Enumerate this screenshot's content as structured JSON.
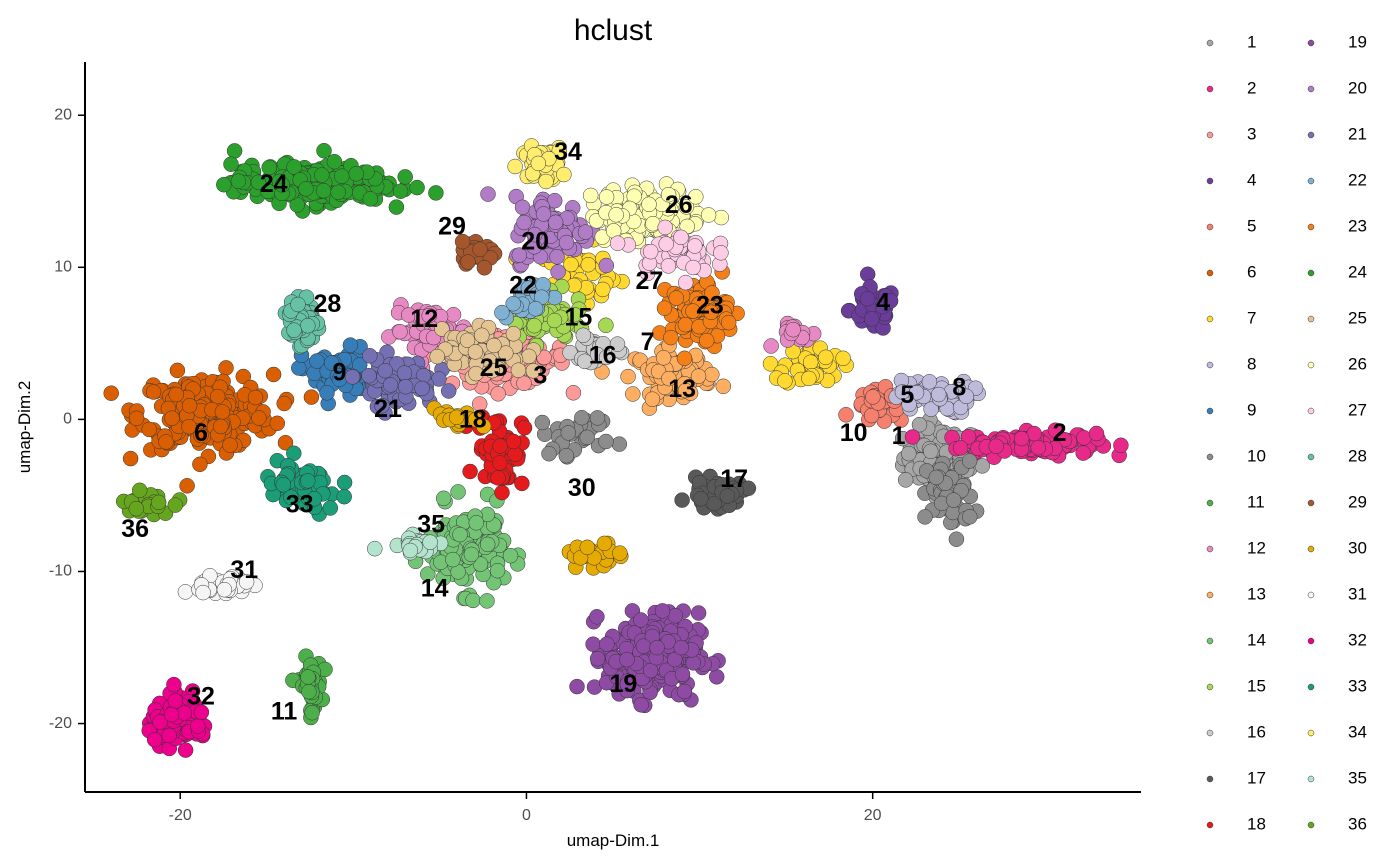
{
  "chart_data": {
    "type": "scatter",
    "title": "hclust",
    "xlabel": "umap-Dim.1",
    "ylabel": "umap-Dim.2",
    "xlim": [
      -25.5,
      35.5
    ],
    "ylim": [
      -24.5,
      23.5
    ],
    "x_ticks": [
      -20,
      0,
      20
    ],
    "y_ticks": [
      -20,
      -10,
      0,
      10,
      20
    ],
    "x_tick_labels": [
      "-20",
      "0",
      "20"
    ],
    "y_tick_labels": [
      "-20",
      "-10",
      "0",
      "10",
      "20"
    ],
    "grid": false,
    "legend_position": "right",
    "series": [
      {
        "name": "1",
        "color": "#A6A6A6",
        "label_at": [
          21.5,
          -1.2
        ],
        "clusters": [
          [
            24.0,
            -2.5,
            2.0,
            1.8,
            110
          ]
        ]
      },
      {
        "name": "2",
        "color": "#E7298A",
        "label_at": [
          30.8,
          -1.0
        ],
        "clusters": [
          [
            29.0,
            -1.6,
            3.5,
            0.7,
            130
          ]
        ]
      },
      {
        "name": "3",
        "color": "#FB9A99",
        "label_at": [
          0.8,
          2.8
        ],
        "clusters": [
          [
            -1.0,
            4.0,
            3.0,
            1.6,
            110
          ]
        ]
      },
      {
        "name": "4",
        "color": "#6A3D9A",
        "label_at": [
          20.6,
          7.6
        ],
        "clusters": [
          [
            20.0,
            7.2,
            1.2,
            1.3,
            45
          ]
        ]
      },
      {
        "name": "5",
        "color": "#F4806D",
        "label_at": [
          22.0,
          1.5
        ],
        "clusters": [
          [
            20.5,
            0.8,
            1.4,
            1.0,
            45
          ]
        ]
      },
      {
        "name": "6",
        "color": "#D95F02",
        "label_at": [
          -18.8,
          -1.0
        ],
        "clusters": [
          [
            -18.5,
            0.5,
            3.5,
            2.2,
            230
          ]
        ]
      },
      {
        "name": "7",
        "color": "#FFD92F",
        "label_at": [
          7.0,
          5.0
        ],
        "clusters": [
          [
            16.5,
            3.5,
            1.5,
            1.2,
            45
          ],
          [
            3.0,
            9.5,
            2.5,
            1.8,
            40
          ]
        ]
      },
      {
        "name": "8",
        "color": "#BEBADA",
        "label_at": [
          25.0,
          2.0
        ],
        "clusters": [
          [
            23.5,
            1.5,
            2.0,
            1.0,
            60
          ]
        ]
      },
      {
        "name": "9",
        "color": "#377EB8",
        "label_at": [
          -10.8,
          3.0
        ],
        "clusters": [
          [
            -11.0,
            3.0,
            1.8,
            1.6,
            50
          ]
        ]
      },
      {
        "name": "10",
        "color": "#8C8C8C",
        "label_at": [
          18.9,
          -1.0
        ],
        "clusters": [
          [
            24.5,
            -5.0,
            1.2,
            2.0,
            60
          ],
          [
            3.0,
            -1.0,
            2.0,
            1.2,
            30
          ]
        ]
      },
      {
        "name": "11",
        "color": "#4DAF4A",
        "label_at": [
          -14.0,
          -19.3
        ],
        "clusters": [
          [
            -12.5,
            -17.5,
            0.6,
            1.6,
            45
          ]
        ]
      },
      {
        "name": "12",
        "color": "#E78AC3",
        "label_at": [
          -5.9,
          6.5
        ],
        "clusters": [
          [
            -5.5,
            5.8,
            2.0,
            1.4,
            60
          ],
          [
            16.0,
            5.5,
            1.2,
            0.7,
            15
          ]
        ]
      },
      {
        "name": "13",
        "color": "#FDAE61",
        "label_at": [
          9.0,
          1.9
        ],
        "clusters": [
          [
            8.5,
            3.0,
            2.0,
            1.4,
            80
          ]
        ]
      },
      {
        "name": "14",
        "color": "#74C476",
        "label_at": [
          -5.3,
          -11.2
        ],
        "clusters": [
          [
            -3.5,
            -8.5,
            2.0,
            2.5,
            130
          ]
        ]
      },
      {
        "name": "15",
        "color": "#A6D854",
        "label_at": [
          3.0,
          6.6
        ],
        "clusters": [
          [
            1.0,
            6.5,
            2.2,
            1.4,
            60
          ]
        ]
      },
      {
        "name": "16",
        "color": "#CCCCCC",
        "label_at": [
          4.4,
          4.1
        ],
        "clusters": [
          [
            4.0,
            4.5,
            1.2,
            1.0,
            25
          ]
        ]
      },
      {
        "name": "17",
        "color": "#595959",
        "label_at": [
          12.0,
          -4.0
        ],
        "clusters": [
          [
            11.0,
            -4.9,
            1.5,
            0.8,
            45
          ]
        ]
      },
      {
        "name": "18",
        "color": "#E41A1C",
        "label_at": [
          -3.1,
          -0.1
        ],
        "clusters": [
          [
            -1.5,
            -2.0,
            1.2,
            2.2,
            60
          ]
        ]
      },
      {
        "name": "19",
        "color": "#8E4BA4",
        "label_at": [
          5.6,
          -17.5
        ],
        "clusters": [
          [
            7.3,
            -15.5,
            2.4,
            2.5,
            280
          ]
        ]
      },
      {
        "name": "20",
        "color": "#B07CC6",
        "label_at": [
          0.5,
          11.6
        ],
        "clusters": [
          [
            1.5,
            12.5,
            2.0,
            2.0,
            90
          ]
        ]
      },
      {
        "name": "21",
        "color": "#7570B3",
        "label_at": [
          -8.0,
          0.6
        ],
        "clusters": [
          [
            -7.5,
            2.5,
            2.0,
            1.4,
            80
          ]
        ]
      },
      {
        "name": "22",
        "color": "#80B1D3",
        "label_at": [
          -0.2,
          8.7
        ],
        "clusters": [
          [
            0.0,
            8.0,
            1.4,
            1.0,
            30
          ]
        ]
      },
      {
        "name": "23",
        "color": "#F57F17",
        "label_at": [
          10.6,
          7.4
        ],
        "clusters": [
          [
            10.0,
            7.0,
            1.5,
            1.8,
            120
          ]
        ]
      },
      {
        "name": "24",
        "color": "#2CA02C",
        "label_at": [
          -14.6,
          15.4
        ],
        "clusters": [
          [
            -12.5,
            15.5,
            4.0,
            1.1,
            260
          ]
        ]
      },
      {
        "name": "25",
        "color": "#E5C494",
        "label_at": [
          -1.9,
          3.3
        ],
        "clusters": [
          [
            -2.5,
            4.5,
            2.2,
            1.4,
            80
          ]
        ]
      },
      {
        "name": "26",
        "color": "#FFFFB3",
        "label_at": [
          8.8,
          14.0
        ],
        "clusters": [
          [
            7.0,
            13.5,
            3.0,
            1.6,
            130
          ]
        ]
      },
      {
        "name": "27",
        "color": "#FCCDE5",
        "label_at": [
          7.1,
          9.0
        ],
        "clusters": [
          [
            8.5,
            11.0,
            2.0,
            1.2,
            50
          ]
        ]
      },
      {
        "name": "28",
        "color": "#66C2A5",
        "label_at": [
          -11.5,
          7.5
        ],
        "clusters": [
          [
            -13.0,
            6.5,
            0.7,
            1.6,
            60
          ]
        ]
      },
      {
        "name": "29",
        "color": "#A6562C",
        "label_at": [
          -4.3,
          12.6
        ],
        "clusters": [
          [
            -2.8,
            11.0,
            1.1,
            0.6,
            30
          ]
        ]
      },
      {
        "name": "30",
        "color": "#E6AB02",
        "label_at": [
          3.2,
          -4.6
        ],
        "clusters": [
          [
            4.0,
            -9.0,
            1.5,
            0.8,
            25
          ],
          [
            -4.0,
            0.0,
            1.2,
            0.6,
            20
          ]
        ]
      },
      {
        "name": "31",
        "color": "#F5F5F5",
        "label_at": [
          -16.3,
          -10.0
        ],
        "clusters": [
          [
            -17.5,
            -11.0,
            1.4,
            0.7,
            35
          ]
        ]
      },
      {
        "name": "32",
        "color": "#EC008C",
        "label_at": [
          -18.8,
          -18.3
        ],
        "clusters": [
          [
            -20.0,
            -19.8,
            1.6,
            1.3,
            110
          ]
        ]
      },
      {
        "name": "33",
        "color": "#1B9E77",
        "label_at": [
          -13.1,
          -5.7
        ],
        "clusters": [
          [
            -13.0,
            -4.5,
            2.0,
            1.6,
            60
          ]
        ]
      },
      {
        "name": "34",
        "color": "#FFED6F",
        "label_at": [
          2.4,
          17.5
        ],
        "clusters": [
          [
            1.0,
            16.8,
            1.2,
            1.0,
            45
          ]
        ]
      },
      {
        "name": "35",
        "color": "#B3E2CD",
        "label_at": [
          -5.5,
          -7.0
        ],
        "clusters": [
          [
            -6.5,
            -8.0,
            1.5,
            0.8,
            25
          ]
        ]
      },
      {
        "name": "36",
        "color": "#66A61E",
        "label_at": [
          -22.6,
          -7.3
        ],
        "clusters": [
          [
            -22.0,
            -5.5,
            1.2,
            0.6,
            30
          ]
        ]
      }
    ]
  }
}
